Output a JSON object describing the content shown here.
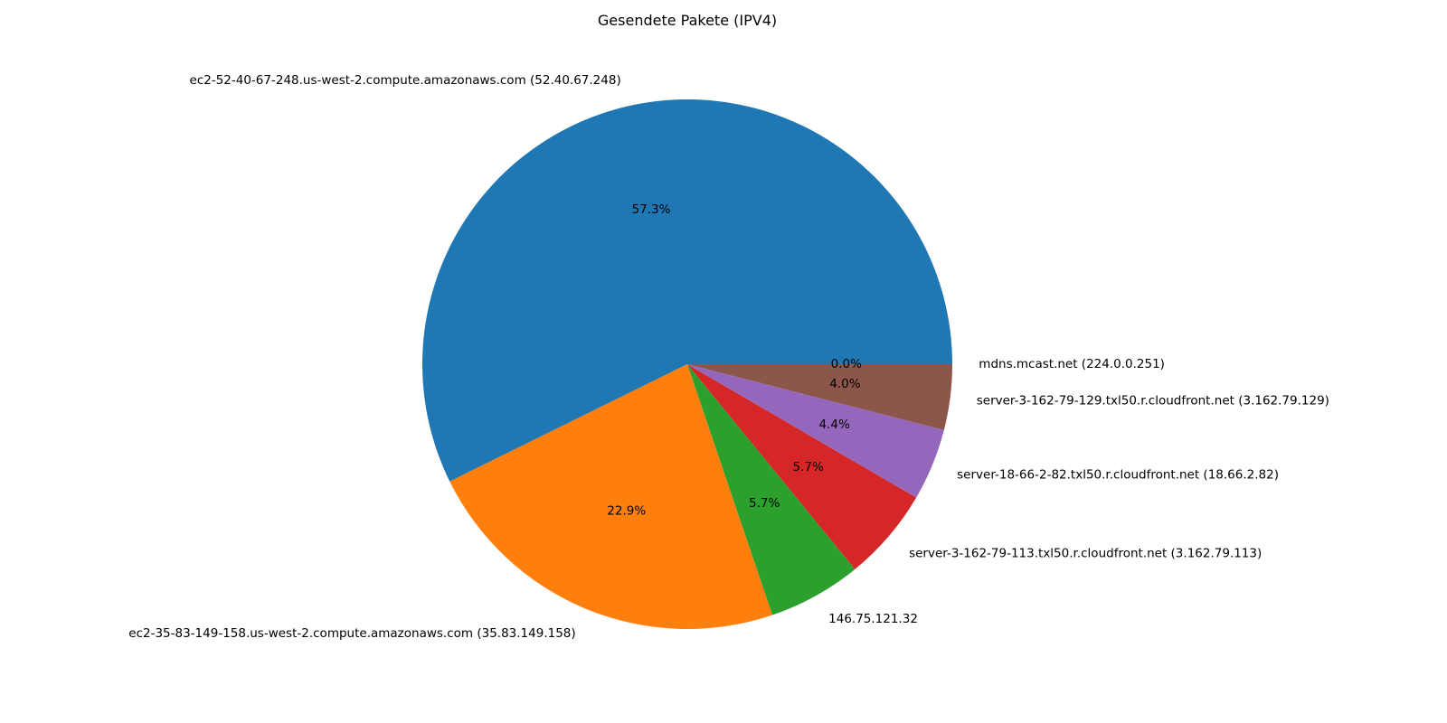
{
  "chart_data": {
    "type": "pie",
    "title": "Gesendete Pakete (IPV4)",
    "slices": [
      {
        "label": "ec2-52-40-67-248.us-west-2.compute.amazonaws.com (52.40.67.248)",
        "value": 57.3,
        "pct_text": "57.3%",
        "color": "#1f77b4"
      },
      {
        "label": "ec2-35-83-149-158.us-west-2.compute.amazonaws.com (35.83.149.158)",
        "value": 22.9,
        "pct_text": "22.9%",
        "color": "#ff7f0e"
      },
      {
        "label": "146.75.121.32",
        "value": 5.7,
        "pct_text": "5.7%",
        "color": "#2ca02c"
      },
      {
        "label": "server-3-162-79-113.txl50.r.cloudfront.net (3.162.79.113)",
        "value": 5.7,
        "pct_text": "5.7%",
        "color": "#d62728"
      },
      {
        "label": "server-18-66-2-82.txl50.r.cloudfront.net (18.66.2.82)",
        "value": 4.4,
        "pct_text": "4.4%",
        "color": "#9467bd"
      },
      {
        "label": "server-3-162-79-129.txl50.r.cloudfront.net (3.162.79.129)",
        "value": 4.0,
        "pct_text": "4.0%",
        "color": "#8c564b"
      },
      {
        "label": "mdns.mcast.net (224.0.0.251)",
        "value": 0.0,
        "pct_text": "0.0%",
        "color": "#e377c2"
      }
    ],
    "start_angle_deg": 0,
    "direction": "counterclockwise",
    "legend": "none"
  }
}
